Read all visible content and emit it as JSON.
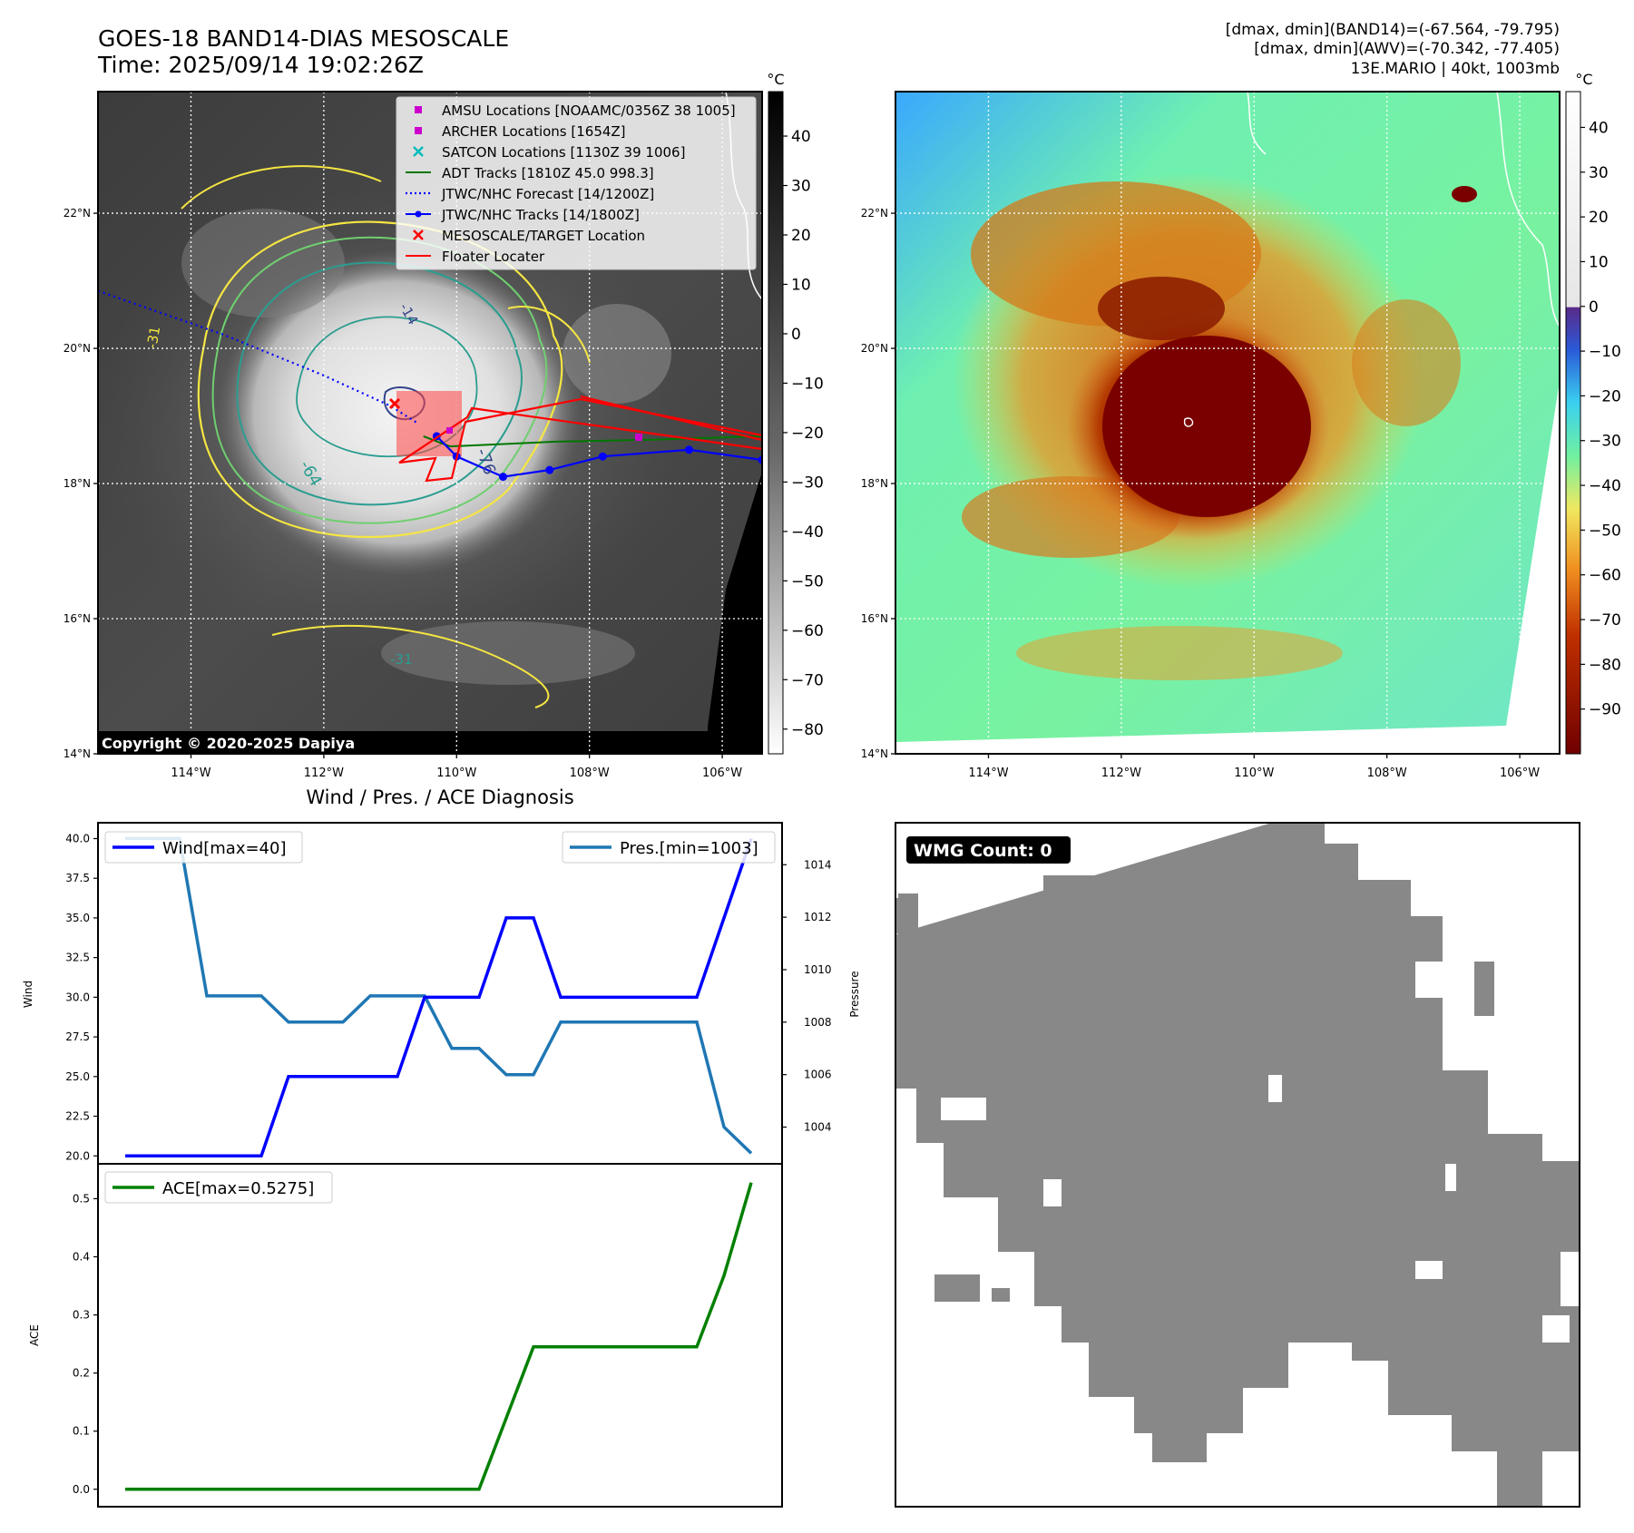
{
  "title": {
    "line1": "GOES-18 BAND14-DIAS MESOSCALE",
    "line2": "Time: 2025/09/14 19:02:26Z"
  },
  "info": {
    "line1": "[dmax, dmin](BAND14)=(-67.564, -79.795)",
    "line2": "[dmax, dmin](AWV)=(-70.342, -77.405)",
    "line3": "13E.MARIO | 40kt, 1003mb"
  },
  "colors": {
    "amsu": "#cc00cc",
    "archer": "#cc00cc",
    "satcon": "#00bbbb",
    "adt": "#007700",
    "forecast": "#0000ff",
    "track": "#0000ff",
    "target": "#ff0000",
    "floater": "#ff0000",
    "wind": "#0000ff",
    "pressure": "#1f77b4",
    "ace": "#008000",
    "wmg": "#888888",
    "contour_yellow": "#f5e642",
    "contour_green": "#6fcf6f",
    "contour_teal": "#2a9d8f",
    "contour_navy": "#334488"
  },
  "map": {
    "lon_ticks": [
      "114°W",
      "112°W",
      "110°W",
      "108°W",
      "106°W"
    ],
    "lat_ticks": [
      "22°N",
      "20°N",
      "18°N",
      "16°N",
      "14°N"
    ],
    "lon_vals": [
      -114,
      -112,
      -110,
      -108,
      -106
    ],
    "lat_vals": [
      22,
      20,
      18,
      16,
      14
    ],
    "lon_range": [
      -115.4,
      -105.4
    ],
    "lat_range": [
      23.8,
      14.0
    ],
    "copyright": "Copyright © 2020-2025 Dapiya",
    "contour_labels": [
      "-31",
      "-64",
      "-76",
      "-14",
      "-31"
    ],
    "forecast_track": [
      [
        -115.4,
        20.85
      ],
      [
        -113.5,
        20.2
      ],
      [
        -112.0,
        19.6
      ],
      [
        -111.0,
        19.15
      ],
      [
        -110.6,
        18.9
      ]
    ],
    "observed_track": [
      [
        -105.4,
        18.35
      ],
      [
        -106.5,
        18.5
      ],
      [
        -107.8,
        18.4
      ],
      [
        -108.6,
        18.2
      ],
      [
        -109.3,
        18.1
      ],
      [
        -110.0,
        18.4
      ],
      [
        -110.3,
        18.7
      ]
    ],
    "adt_track": [
      [
        -105.4,
        18.7
      ],
      [
        -107.0,
        18.65
      ],
      [
        -108.5,
        18.62
      ],
      [
        -110.1,
        18.55
      ],
      [
        -110.5,
        18.7
      ]
    ]
  },
  "legend": {
    "items": [
      {
        "label": "AMSU Locations [NOAAMC/0356Z 38 1005]",
        "kind": "square",
        "color_key": "amsu"
      },
      {
        "label": "ARCHER Locations [1654Z]",
        "kind": "square",
        "color_key": "archer"
      },
      {
        "label": "SATCON Locations [1130Z 39 1006]",
        "kind": "x",
        "color_key": "satcon"
      },
      {
        "label": "ADT Tracks [1810Z 45.0 998.3]",
        "kind": "line",
        "color_key": "adt"
      },
      {
        "label": "JTWC/NHC Forecast [14/1200Z]",
        "kind": "dotted",
        "color_key": "forecast"
      },
      {
        "label": "JTWC/NHC Tracks [14/1800Z]",
        "kind": "dotline",
        "color_key": "track"
      },
      {
        "label": "MESOSCALE/TARGET Location",
        "kind": "x",
        "color_key": "target"
      },
      {
        "label": "Floater Locater",
        "kind": "line",
        "color_key": "floater"
      }
    ]
  },
  "colorbar_left": {
    "unit": "°C",
    "ticks": [
      "40",
      "30",
      "20",
      "10",
      "0",
      "−10",
      "−20",
      "−30",
      "−40",
      "−50",
      "−60",
      "−70",
      "−80"
    ],
    "values": [
      40,
      30,
      20,
      10,
      0,
      -10,
      -20,
      -30,
      -40,
      -50,
      -60,
      -70,
      -80
    ],
    "range": [
      49,
      -85
    ]
  },
  "colorbar_right": {
    "unit": "°C",
    "ticks": [
      "40",
      "30",
      "20",
      "10",
      "0",
      "−10",
      "−20",
      "−30",
      "−40",
      "−50",
      "−60",
      "−70",
      "−80",
      "−90"
    ],
    "values": [
      40,
      30,
      20,
      10,
      0,
      -10,
      -20,
      -30,
      -40,
      -50,
      -60,
      -70,
      -80,
      -90
    ],
    "range": [
      48,
      -100
    ]
  },
  "diagnosis": {
    "title": "Wind / Pres. / ACE Diagnosis",
    "wind_ylabel": "Wind",
    "pres_ylabel": "Pressure",
    "ace_ylabel": "ACE",
    "wind_legend": "Wind[max=40]",
    "pres_legend": "Pres.[min=1003]",
    "ace_legend": "ACE[max=0.5275]",
    "wind_ticks": [
      "20.0",
      "22.5",
      "25.0",
      "27.5",
      "30.0",
      "32.5",
      "35.0",
      "37.5",
      "40.0"
    ],
    "wind_tick_vals": [
      20,
      22.5,
      25,
      27.5,
      30,
      32.5,
      35,
      37.5,
      40
    ],
    "pres_ticks": [
      "1004",
      "1006",
      "1008",
      "1010",
      "1012",
      "1014"
    ],
    "pres_tick_vals": [
      1004,
      1006,
      1008,
      1010,
      1012,
      1014
    ],
    "ace_ticks": [
      "0.0",
      "0.1",
      "0.2",
      "0.3",
      "0.4",
      "0.5"
    ],
    "ace_tick_vals": [
      0,
      0.1,
      0.2,
      0.3,
      0.4,
      0.5
    ]
  },
  "chart_data": [
    {
      "type": "line",
      "x": [
        0,
        1,
        2,
        3,
        4,
        5,
        6,
        7,
        8,
        9,
        10,
        11,
        12,
        13,
        14,
        15,
        16,
        17,
        18,
        19,
        20,
        21,
        22,
        23
      ],
      "series": [
        {
          "name": "Wind[max=40]",
          "axis": "left",
          "values": [
            20,
            20,
            20,
            20,
            20,
            20,
            25,
            25,
            25,
            25,
            25,
            30,
            30,
            30,
            35,
            35,
            30,
            30,
            30,
            30,
            30,
            30,
            35,
            40
          ]
        },
        {
          "name": "Pres.[min=1003]",
          "axis": "right",
          "values": [
            1015,
            1015,
            1015,
            1009,
            1009,
            1009,
            1008,
            1008,
            1008,
            1009,
            1009,
            1009,
            1007,
            1007,
            1006,
            1006,
            1008,
            1008,
            1008,
            1008,
            1008,
            1008,
            1004,
            1003
          ]
        }
      ],
      "ylim_left": [
        19.5,
        41
      ],
      "ylim_right": [
        1002.6,
        1015.6
      ],
      "ylabel": "Wind",
      "ylabel_right": "Pressure"
    },
    {
      "type": "line",
      "x": [
        0,
        1,
        2,
        3,
        4,
        5,
        6,
        7,
        8,
        9,
        10,
        11,
        12,
        13,
        14,
        15,
        16,
        17,
        18,
        19,
        20,
        21,
        22,
        23
      ],
      "series": [
        {
          "name": "ACE[max=0.5275]",
          "values": [
            0,
            0,
            0,
            0,
            0,
            0,
            0,
            0,
            0,
            0,
            0,
            0,
            0,
            0,
            0.1225,
            0.245,
            0.245,
            0.245,
            0.245,
            0.245,
            0.245,
            0.245,
            0.3675,
            0.5275
          ]
        }
      ],
      "ylim": [
        -0.03,
        0.56
      ],
      "ylabel": "ACE"
    }
  ],
  "wmg": {
    "label": "WMG Count: 0"
  }
}
